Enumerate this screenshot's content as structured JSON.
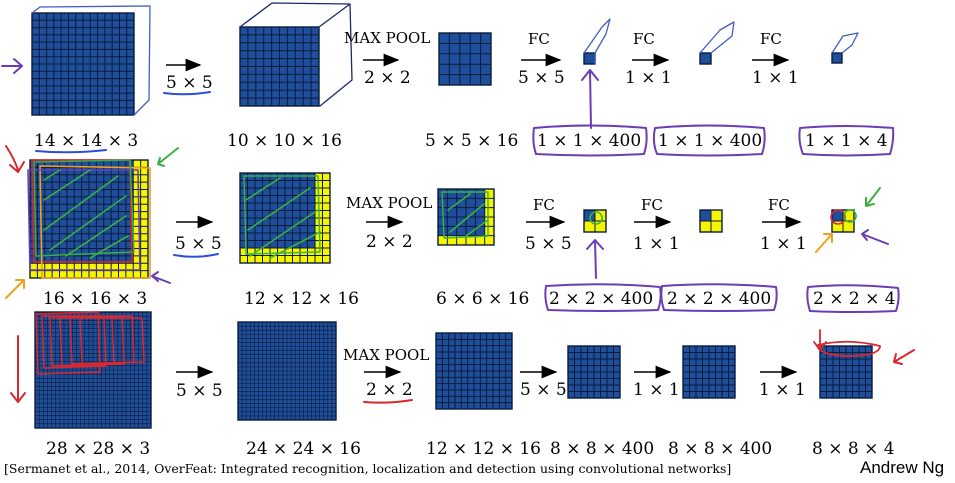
{
  "rows": [
    {
      "input_dims": "14 × 14 × 3",
      "conv_filter": "5 × 5",
      "conv_output_dims": "10 × 10 × 16",
      "pool_op": "MAX POOL",
      "pool_size": "2 × 2",
      "pool_output_dims": "5 × 5 × 16",
      "fc1_op": "FC",
      "fc1_filter": "5 × 5",
      "fc1_output_dims": "1 × 1 × 400",
      "fc2_op": "FC",
      "fc2_filter": "1 × 1",
      "fc2_output_dims": "1 × 1 × 400",
      "fc3_op": "FC",
      "fc3_filter": "1 × 1",
      "fc3_output_dims": "1 × 1 × 4"
    },
    {
      "input_dims": "16 × 16 × 3",
      "conv_filter": "5 × 5",
      "conv_output_dims": "12 × 12 × 16",
      "pool_op": "MAX POOL",
      "pool_size": "2 × 2",
      "pool_output_dims": "6 × 6 × 16",
      "fc1_op": "FC",
      "fc1_filter": "5 × 5",
      "fc1_output_dims": "2 × 2 × 400",
      "fc2_op": "FC",
      "fc2_filter": "1 × 1",
      "fc2_output_dims": "2 × 2 × 400",
      "fc3_op": "FC",
      "fc3_filter": "1 × 1",
      "fc3_output_dims": "2 × 2 × 4"
    },
    {
      "input_dims": "28 × 28 × 3",
      "conv_filter": "5 × 5",
      "conv_output_dims": "24 × 24 × 16",
      "pool_op": "MAX POOL",
      "pool_size": "2 × 2",
      "pool_output_dims": "12 × 12 × 16",
      "fc1_filter": "5 × 5",
      "fc1_output_dims": "8 × 8 × 400",
      "fc2_filter": "1 × 1",
      "fc2_output_dims": "8 × 8 × 400",
      "fc3_filter": "1 × 1",
      "fc3_output_dims": "8 × 8 × 4"
    }
  ],
  "citation": "[Sermanet et al., 2014, OverFeat: Integrated recognition, localization and detection using convolutional networks]",
  "author": "Andrew Ng",
  "colors": {
    "cell_fill": "#1f4e9a",
    "grid_line": "#0a1c3d",
    "pad_fill": "#f5f500",
    "ink_blue": "#2b4fd8",
    "ink_purple": "#6a3db5",
    "ink_green": "#3cb043",
    "ink_red": "#d9272e",
    "ink_orange": "#f0a01e"
  }
}
